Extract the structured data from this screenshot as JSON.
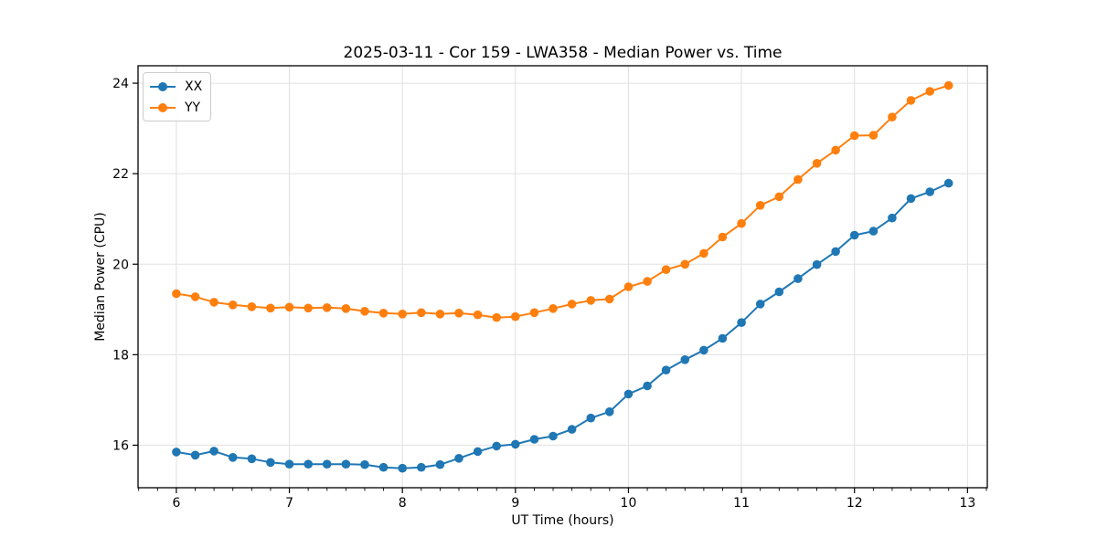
{
  "colors": {
    "series_xx": "#1f77b4",
    "series_yy": "#ff7f0e",
    "grid": "#e0e0e0",
    "spine": "#000000",
    "background": "#ffffff"
  },
  "chart_data": {
    "type": "line",
    "title": "2025-03-11 - Cor 159 - LWA358 - Median Power vs. Time",
    "xlabel": "UT Time (hours)",
    "ylabel": "Median Power (CPU)",
    "xlim": [
      5.661,
      13.175
    ],
    "ylim": [
      15.06,
      24.385
    ],
    "xticks": [
      6,
      7,
      8,
      9,
      10,
      11,
      12,
      13
    ],
    "yticks": [
      16,
      18,
      20,
      22,
      24
    ],
    "x_minor_step_hours": 0.1667,
    "grid": true,
    "legend_position": "upper left",
    "marker": "circle",
    "x": [
      6.0,
      6.167,
      6.333,
      6.5,
      6.667,
      6.833,
      7.0,
      7.167,
      7.333,
      7.5,
      7.667,
      7.833,
      8.0,
      8.167,
      8.333,
      8.5,
      8.667,
      8.833,
      9.0,
      9.167,
      9.333,
      9.5,
      9.667,
      9.833,
      10.0,
      10.167,
      10.333,
      10.5,
      10.667,
      10.833,
      11.0,
      11.167,
      11.333,
      11.5,
      11.667,
      11.833,
      12.0,
      12.167,
      12.333,
      12.5,
      12.667,
      12.833
    ],
    "series": [
      {
        "name": "XX",
        "color": "#1f77b4",
        "values": [
          15.85,
          15.78,
          15.87,
          15.73,
          15.7,
          15.62,
          15.58,
          15.58,
          15.58,
          15.58,
          15.57,
          15.51,
          15.49,
          15.51,
          15.57,
          15.71,
          15.86,
          15.98,
          16.02,
          16.13,
          16.2,
          16.35,
          16.6,
          16.74,
          17.13,
          17.31,
          17.66,
          17.89,
          18.1,
          18.36,
          18.71,
          19.12,
          19.39,
          19.68,
          19.99,
          20.28,
          20.64,
          20.73,
          21.02,
          21.45,
          21.6,
          21.79
        ]
      },
      {
        "name": "YY",
        "color": "#ff7f0e",
        "values": [
          19.35,
          19.28,
          19.16,
          19.1,
          19.06,
          19.03,
          19.05,
          19.03,
          19.04,
          19.02,
          18.96,
          18.92,
          18.9,
          18.93,
          18.9,
          18.92,
          18.88,
          18.82,
          18.84,
          18.93,
          19.02,
          19.12,
          19.2,
          19.23,
          19.5,
          19.62,
          19.88,
          20.0,
          20.24,
          20.6,
          20.9,
          21.3,
          21.49,
          21.87,
          22.23,
          22.52,
          22.84,
          22.85,
          23.25,
          23.62,
          23.82,
          23.95
        ]
      }
    ]
  }
}
